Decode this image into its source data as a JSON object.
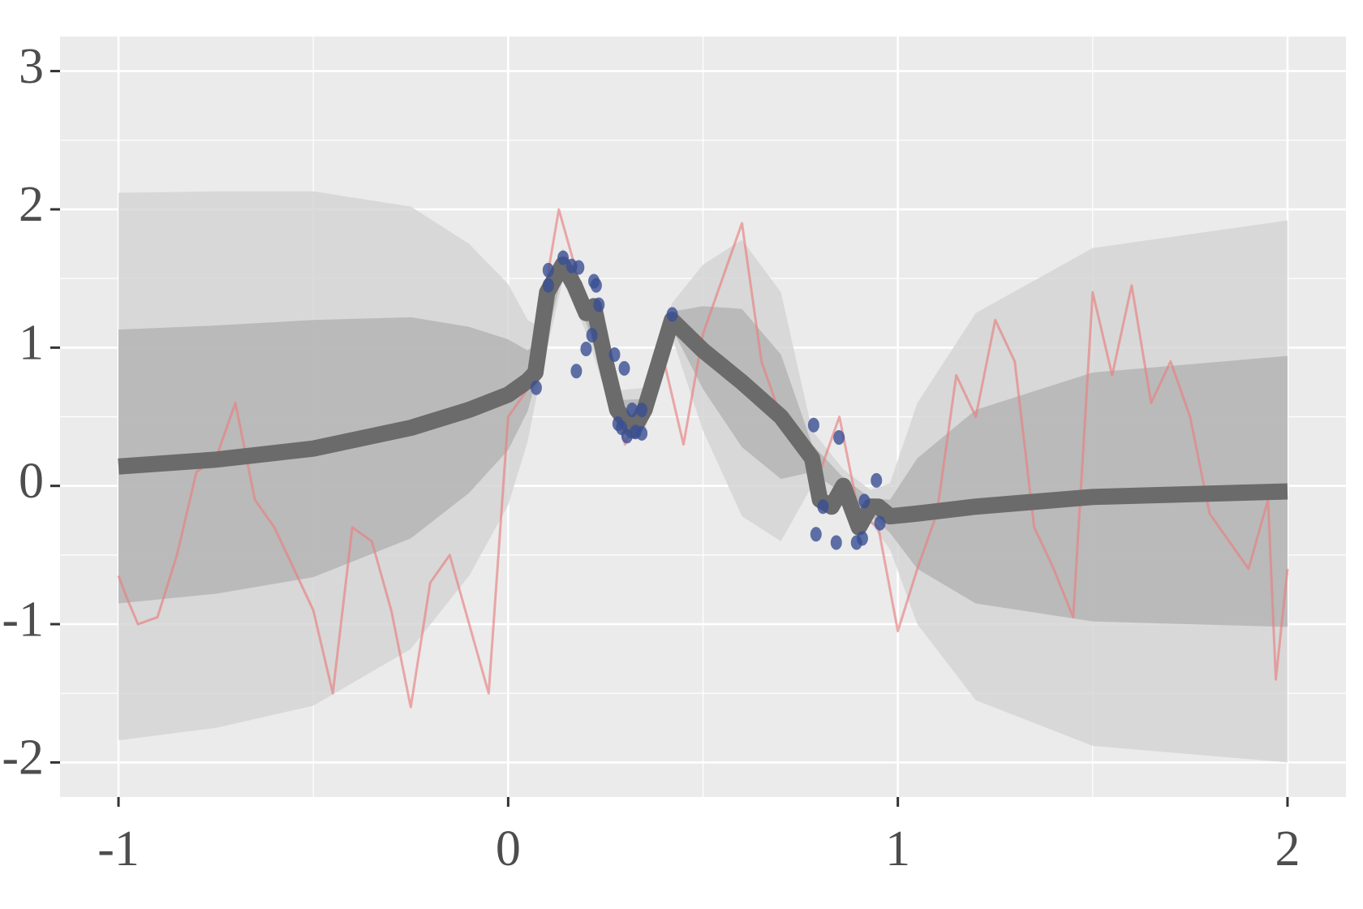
{
  "chart_data": {
    "type": "gp_regression",
    "xlim": [
      -1.15,
      2.15
    ],
    "ylim": [
      -2.25,
      3.25
    ],
    "xticks": [
      -1,
      0,
      1,
      2
    ],
    "yticks": [
      -2,
      -1,
      0,
      1,
      2,
      3
    ],
    "x_minor_grid": [
      -0.5,
      0.5,
      1.5
    ],
    "y_minor_grid": [
      -1.5,
      -0.5,
      0.5,
      1.5,
      2.5
    ],
    "grid": true,
    "background": "#ebebeb",
    "band_x": [
      -1,
      -0.75,
      -0.5,
      -0.25,
      -0.1,
      0,
      0.05,
      0.08,
      0.14,
      0.2,
      0.28,
      0.35,
      0.42,
      0.5,
      0.6,
      0.7,
      0.78,
      0.86,
      0.93,
      0.98,
      1.05,
      1.2,
      1.5,
      2
    ],
    "bands": [
      {
        "color": "#d3d3d3",
        "upper": [
          2.12,
          2.13,
          2.13,
          2.02,
          1.75,
          1.46,
          1.2,
          1.15,
          1.72,
          1.39,
          0.69,
          0.71,
          1.32,
          1.6,
          1.78,
          1.4,
          0.4,
          0.12,
          -0.03,
          0.02,
          0.6,
          1.25,
          1.72,
          1.92
        ],
        "lower": [
          -1.84,
          -1.75,
          -1.59,
          -1.18,
          -0.65,
          -0.14,
          0.32,
          0.75,
          1.48,
          1.11,
          0.41,
          0.39,
          1.08,
          0.4,
          -0.22,
          -0.4,
          0.0,
          -0.12,
          -0.27,
          -0.46,
          -1.0,
          -1.55,
          -1.88,
          -2.0
        ]
      },
      {
        "color": "#b3b3b3",
        "upper": [
          1.13,
          1.16,
          1.2,
          1.22,
          1.15,
          1.06,
          0.98,
          1.05,
          1.66,
          1.32,
          0.62,
          0.63,
          1.26,
          1.3,
          1.28,
          0.95,
          0.3,
          0.06,
          -0.09,
          -0.1,
          0.2,
          0.55,
          0.82,
          0.94
        ],
        "lower": [
          -0.85,
          -0.78,
          -0.66,
          -0.38,
          -0.05,
          0.26,
          0.54,
          0.85,
          1.54,
          1.18,
          0.48,
          0.47,
          1.14,
          0.7,
          0.28,
          0.05,
          0.1,
          -0.06,
          -0.21,
          -0.34,
          -0.6,
          -0.85,
          -0.98,
          -1.02
        ]
      }
    ],
    "mean": {
      "color": "#6b6b6b",
      "x": [
        -1,
        -0.75,
        -0.5,
        -0.25,
        -0.1,
        0,
        0.05,
        0.07,
        0.1,
        0.14,
        0.17,
        0.2,
        0.22,
        0.25,
        0.28,
        0.32,
        0.35,
        0.42,
        0.5,
        0.6,
        0.7,
        0.78,
        0.8,
        0.83,
        0.86,
        0.9,
        0.93,
        0.95,
        0.98,
        1.05,
        1.2,
        1.5,
        2
      ],
      "values": [
        0.14,
        0.19,
        0.27,
        0.42,
        0.55,
        0.66,
        0.76,
        0.82,
        1.4,
        1.6,
        1.45,
        1.25,
        1.3,
        0.9,
        0.55,
        0.4,
        0.55,
        1.2,
        0.98,
        0.75,
        0.5,
        0.2,
        -0.1,
        -0.15,
        0.0,
        -0.3,
        -0.15,
        -0.15,
        -0.22,
        -0.2,
        -0.15,
        -0.08,
        -0.04
      ]
    },
    "sample": {
      "color": "#e8807f",
      "x": [
        -1,
        -0.98,
        -0.95,
        -0.9,
        -0.85,
        -0.8,
        -0.75,
        -0.7,
        -0.65,
        -0.6,
        -0.55,
        -0.5,
        -0.45,
        -0.4,
        -0.35,
        -0.3,
        -0.25,
        -0.2,
        -0.15,
        -0.1,
        -0.05,
        0,
        0.05,
        0.1,
        0.13,
        0.2,
        0.25,
        0.3,
        0.35,
        0.4,
        0.45,
        0.5,
        0.55,
        0.6,
        0.65,
        0.7,
        0.75,
        0.8,
        0.85,
        0.9,
        0.95,
        1.0,
        1.05,
        1.1,
        1.15,
        1.2,
        1.25,
        1.3,
        1.35,
        1.4,
        1.45,
        1.5,
        1.55,
        1.6,
        1.65,
        1.7,
        1.75,
        1.8,
        1.85,
        1.9,
        1.95,
        1.97,
        2.0
      ],
      "values": [
        -0.65,
        -0.8,
        -1.0,
        -0.95,
        -0.5,
        0.1,
        0.2,
        0.6,
        -0.1,
        -0.3,
        -0.6,
        -0.9,
        -1.5,
        -0.3,
        -0.4,
        -0.9,
        -1.6,
        -0.7,
        -0.5,
        -1.0,
        -1.5,
        0.5,
        0.7,
        1.5,
        2.0,
        1.3,
        0.8,
        0.3,
        0.7,
        0.9,
        0.3,
        1.1,
        1.5,
        1.9,
        0.9,
        0.5,
        0.3,
        0.1,
        0.5,
        -0.2,
        -0.3,
        -1.05,
        -0.6,
        -0.2,
        0.8,
        0.5,
        1.2,
        0.9,
        -0.3,
        -0.6,
        -0.95,
        1.4,
        0.8,
        1.45,
        0.6,
        0.9,
        0.5,
        -0.2,
        -0.4,
        -0.6,
        -0.1,
        -1.4,
        -0.6
      ]
    },
    "points": {
      "color": "#3a4f94",
      "x": [
        0.072,
        0.103,
        0.103,
        0.141,
        0.163,
        0.181,
        0.175,
        0.2,
        0.215,
        0.22,
        0.226,
        0.233,
        0.273,
        0.298,
        0.282,
        0.291,
        0.305,
        0.318,
        0.327,
        0.343,
        0.343,
        0.421,
        0.784,
        0.79,
        0.808,
        0.842,
        0.849,
        0.894,
        0.909,
        0.914,
        0.945,
        0.954
      ],
      "values": [
        0.71,
        1.56,
        1.45,
        1.65,
        1.59,
        1.58,
        0.83,
        0.99,
        1.09,
        1.48,
        1.45,
        1.31,
        0.95,
        0.85,
        0.45,
        0.42,
        0.36,
        0.55,
        0.39,
        0.55,
        0.38,
        1.24,
        0.44,
        -0.35,
        -0.15,
        -0.41,
        0.35,
        -0.41,
        -0.38,
        -0.11,
        0.04,
        -0.27
      ]
    }
  }
}
